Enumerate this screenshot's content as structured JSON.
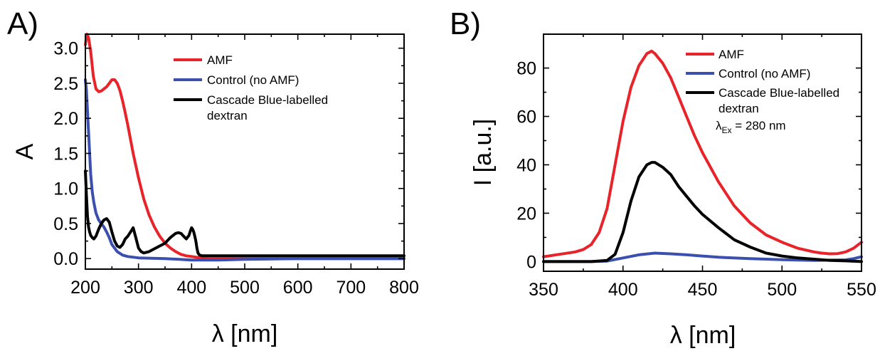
{
  "figure": {
    "panels": [
      {
        "letter": "A)"
      },
      {
        "letter": "B)"
      }
    ]
  },
  "colors": {
    "amf": "#e8232a",
    "control": "#3a4fae",
    "cascade": "#000000"
  },
  "chart_data": [
    {
      "type": "line",
      "xlabel": "λ [nm]",
      "ylabel": "A",
      "xlim": [
        200,
        800
      ],
      "ylim": [
        -0.15,
        3.2
      ],
      "xticks": [
        200,
        300,
        400,
        500,
        600,
        700,
        800
      ],
      "yticks": [
        0.0,
        0.5,
        1.0,
        1.5,
        2.0,
        2.5,
        3.0
      ],
      "ytick_labels": [
        "0.0",
        "0.5",
        "1.0",
        "1.5",
        "2.0",
        "2.5",
        "3.0"
      ],
      "grid": false,
      "legend_position": "top-right",
      "legend": [
        "AMF",
        "Control (no AMF)",
        "Cascade Blue-labelled dextran"
      ],
      "series": [
        {
          "name": "AMF",
          "color_key": "amf",
          "x": [
            200,
            203,
            206,
            210,
            215,
            220,
            225,
            230,
            235,
            240,
            245,
            250,
            255,
            260,
            265,
            270,
            275,
            280,
            290,
            300,
            310,
            320,
            330,
            340,
            350,
            360,
            370,
            380,
            390,
            400,
            410,
            420,
            430,
            450,
            500,
            600,
            700,
            800
          ],
          "y": [
            3.05,
            3.2,
            3.15,
            2.95,
            2.6,
            2.42,
            2.38,
            2.39,
            2.42,
            2.45,
            2.5,
            2.55,
            2.55,
            2.5,
            2.4,
            2.25,
            2.08,
            1.9,
            1.5,
            1.15,
            0.85,
            0.62,
            0.45,
            0.32,
            0.22,
            0.15,
            0.1,
            0.06,
            0.04,
            0.03,
            0.02,
            0.01,
            0.0,
            0.0,
            0.0,
            0.0,
            0.0,
            0.0
          ]
        },
        {
          "name": "Control (no AMF)",
          "color_key": "control",
          "x": [
            200,
            202,
            204,
            206,
            208,
            210,
            213,
            216,
            220,
            225,
            230,
            235,
            240,
            245,
            250,
            260,
            270,
            280,
            300,
            350,
            400,
            450,
            500,
            600,
            700,
            800
          ],
          "y": [
            2.55,
            2.4,
            2.1,
            1.8,
            1.5,
            1.2,
            0.95,
            0.8,
            0.65,
            0.55,
            0.5,
            0.45,
            0.38,
            0.3,
            0.2,
            0.1,
            0.05,
            0.03,
            0.01,
            0.0,
            -0.02,
            -0.02,
            -0.01,
            0.0,
            0.0,
            0.0
          ]
        },
        {
          "name": "Cascade Blue-labelled dextran",
          "color_key": "cascade",
          "x": [
            200,
            202,
            204,
            206,
            208,
            210,
            213,
            216,
            220,
            225,
            230,
            235,
            240,
            245,
            250,
            255,
            260,
            265,
            270,
            275,
            280,
            285,
            290,
            295,
            300,
            305,
            310,
            320,
            330,
            340,
            350,
            355,
            360,
            365,
            370,
            375,
            380,
            385,
            390,
            395,
            398,
            400,
            402,
            404,
            406,
            408,
            410,
            412,
            415,
            420,
            430,
            450,
            500,
            600,
            700,
            800
          ],
          "y": [
            1.25,
            0.9,
            0.6,
            0.45,
            0.38,
            0.33,
            0.3,
            0.28,
            0.32,
            0.42,
            0.5,
            0.55,
            0.57,
            0.52,
            0.38,
            0.25,
            0.18,
            0.16,
            0.2,
            0.28,
            0.32,
            0.38,
            0.44,
            0.3,
            0.15,
            0.1,
            0.08,
            0.1,
            0.14,
            0.18,
            0.22,
            0.26,
            0.3,
            0.33,
            0.36,
            0.37,
            0.36,
            0.32,
            0.28,
            0.33,
            0.4,
            0.44,
            0.42,
            0.38,
            0.32,
            0.25,
            0.15,
            0.08,
            0.05,
            0.04,
            0.04,
            0.04,
            0.04,
            0.04,
            0.04,
            0.04
          ]
        }
      ]
    },
    {
      "type": "line",
      "xlabel": "λ [nm]",
      "ylabel": "I [a.u.]",
      "xlim": [
        350,
        550
      ],
      "ylim": [
        -4,
        94
      ],
      "xticks": [
        350,
        400,
        450,
        500,
        550
      ],
      "yticks": [
        0,
        20,
        40,
        60,
        80
      ],
      "ytick_labels": [
        "0",
        "20",
        "40",
        "60",
        "80"
      ],
      "grid": false,
      "legend_position": "top-right",
      "legend": [
        "AMF",
        "Control (no AMF)",
        "Cascade Blue-labelled dextran"
      ],
      "annotation": {
        "main": "λ",
        "subscript": "Ex",
        "rest": " = 280 nm"
      },
      "series": [
        {
          "name": "AMF",
          "color_key": "amf",
          "x": [
            350,
            360,
            370,
            375,
            380,
            385,
            390,
            395,
            400,
            405,
            410,
            415,
            418,
            420,
            425,
            430,
            435,
            440,
            445,
            450,
            460,
            470,
            480,
            490,
            500,
            510,
            520,
            525,
            530,
            535,
            540,
            545,
            550
          ],
          "y": [
            2,
            3,
            4,
            5,
            7,
            12,
            22,
            40,
            58,
            72,
            81,
            86,
            87,
            86,
            82,
            76,
            68,
            60,
            52,
            45,
            33,
            23,
            16,
            11,
            8,
            5.5,
            4,
            3.5,
            3.2,
            3.3,
            4,
            5.5,
            8
          ]
        },
        {
          "name": "Control (no AMF)",
          "color_key": "control",
          "x": [
            350,
            380,
            390,
            400,
            410,
            420,
            430,
            440,
            450,
            460,
            480,
            500,
            520,
            540,
            545,
            550
          ],
          "y": [
            0,
            0,
            0.2,
            1.5,
            2.8,
            3.5,
            3.2,
            2.8,
            2.3,
            1.8,
            1.2,
            0.8,
            0.5,
            0.7,
            1.2,
            2
          ]
        },
        {
          "name": "Cascade Blue-labelled dextran",
          "color_key": "cascade",
          "x": [
            350,
            380,
            390,
            395,
            400,
            405,
            410,
            415,
            418,
            420,
            425,
            430,
            435,
            440,
            445,
            450,
            460,
            470,
            480,
            490,
            500,
            510,
            520,
            530,
            540,
            550
          ],
          "y": [
            0,
            0,
            0.5,
            3,
            12,
            25,
            35,
            40,
            41,
            41,
            39,
            36,
            31,
            27,
            23,
            19.5,
            14,
            9,
            6,
            3.5,
            2.3,
            1.5,
            1,
            0.5,
            0.3,
            0
          ]
        }
      ]
    }
  ]
}
